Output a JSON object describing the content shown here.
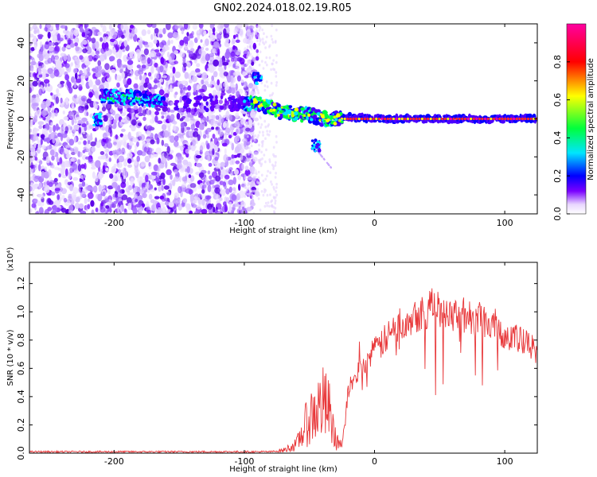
{
  "title": "GN02.2024.018.02.19.R05",
  "chart_data": [
    {
      "type": "heatmap",
      "xlabel": "Height of straight line (km)",
      "ylabel": "Frequency (Hz)",
      "xlim": [
        -265,
        125
      ],
      "ylim": [
        -50,
        50
      ],
      "x_ticks": [
        -200,
        -100,
        0,
        100
      ],
      "y_ticks": [
        -40,
        -20,
        0,
        20,
        40
      ],
      "colorbar": {
        "label": "Normalized spectral amplitude",
        "range": [
          0,
          1
        ],
        "ticks": [
          0.0,
          0.2,
          0.4,
          0.6,
          0.8
        ],
        "colors": [
          "#ffffff",
          "#7a00ff",
          "#0000ff",
          "#00e5ff",
          "#00ff3c",
          "#ffff00",
          "#ff0000",
          "#ff00a0"
        ]
      },
      "ridge": [
        {
          "x": -210,
          "y": 12
        },
        {
          "x": -180,
          "y": 11
        },
        {
          "x": -150,
          "y": 8
        },
        {
          "x": -100,
          "y": 8
        },
        {
          "x": -90,
          "y": 8
        },
        {
          "x": -80,
          "y": 6
        },
        {
          "x": -70,
          "y": 3
        },
        {
          "x": -60,
          "y": 3
        },
        {
          "x": -50,
          "y": 2
        },
        {
          "x": -40,
          "y": 0
        },
        {
          "x": -30,
          "y": 0
        },
        {
          "x": -20,
          "y": 1
        },
        {
          "x": 0,
          "y": 0
        },
        {
          "x": 50,
          "y": 0
        },
        {
          "x": 100,
          "y": 0
        },
        {
          "x": 125,
          "y": 0
        }
      ],
      "annotations": [
        {
          "x": -90,
          "y": 21,
          "note": "burst"
        },
        {
          "x": -45,
          "y": -14,
          "note": "burst"
        }
      ]
    },
    {
      "type": "line",
      "xlabel": "Height of straight line (km)",
      "ylabel": "SNR (10 * v/v)",
      "scale_label": "(x10⁴)",
      "xlim": [
        -265,
        125
      ],
      "ylim": [
        0,
        1.35
      ],
      "x_ticks": [
        -200,
        -100,
        0,
        100
      ],
      "y_ticks": [
        0.0,
        0.2,
        0.4,
        0.6,
        0.8,
        1.0,
        1.2
      ],
      "series": [
        {
          "color": "#e8383a",
          "x": [
            -265,
            -200,
            -150,
            -100,
            -80,
            -70,
            -60,
            -50,
            -40,
            -35,
            -30,
            -25,
            -20,
            -10,
            0,
            10,
            20,
            30,
            40,
            50,
            60,
            70,
            80,
            90,
            100,
            110,
            120,
            125
          ],
          "y": [
            0.01,
            0.01,
            0.01,
            0.01,
            0.01,
            0.02,
            0.06,
            0.25,
            0.35,
            0.3,
            0.1,
            0.05,
            0.45,
            0.62,
            0.72,
            0.82,
            0.92,
            0.98,
            1.02,
            1.03,
            1.0,
            0.97,
            0.95,
            0.92,
            0.85,
            0.8,
            0.75,
            0.72
          ]
        }
      ]
    }
  ]
}
